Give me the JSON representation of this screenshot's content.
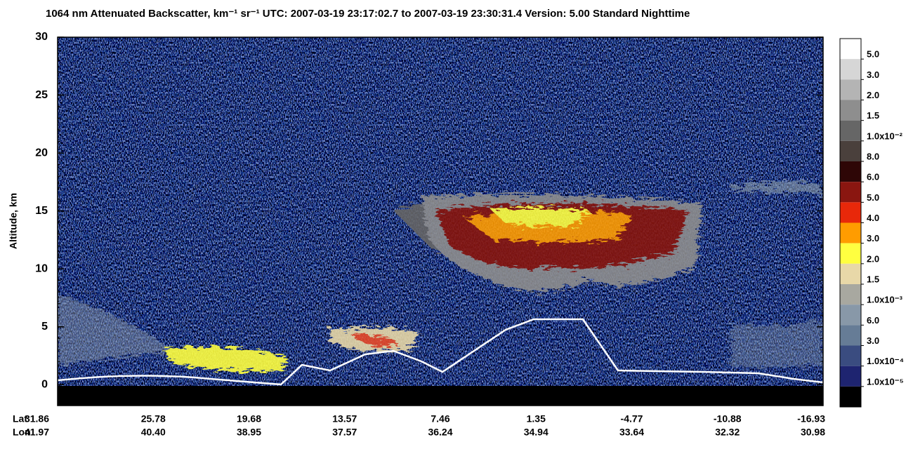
{
  "chart_data": {
    "type": "heatmap",
    "title": "1064 nm Attenuated Backscatter, km⁻¹ sr⁻¹    UTC:  2007-03-19 23:17:02.7  to  2007-03-19 23:30:31.4    Version: 5.00  Standard  Nighttime",
    "ylabel": "Altitude, km",
    "ylim": [
      -1.8,
      30
    ],
    "yticks": [
      0,
      5,
      10,
      15,
      20,
      25,
      30
    ],
    "x_rows": [
      {
        "name": "Lat",
        "labels": [
          "31.86",
          "25.78",
          "19.68",
          "13.57",
          "7.46",
          "1.35",
          "-4.77",
          "-10.88",
          "-16.93"
        ]
      },
      {
        "name": "Lon",
        "labels": [
          "41.97",
          "40.40",
          "38.95",
          "37.57",
          "36.24",
          "34.94",
          "33.64",
          "32.32",
          "30.98"
        ]
      }
    ],
    "colorbar": {
      "colors": [
        "#ffffff",
        "#d6d6d6",
        "#b4b4b4",
        "#8e8e8e",
        "#666666",
        "#4a403c",
        "#2e0606",
        "#8a1610",
        "#e8280a",
        "#ff9c00",
        "#ffff40",
        "#e8d8a8",
        "#a8a8a0",
        "#8898a8",
        "#667c96",
        "#3a4c80",
        "#1e2470",
        "#000000"
      ],
      "labels": [
        "5.0",
        "3.0",
        "2.0",
        "1.5",
        "1.0x10⁻²",
        "8.0",
        "6.0",
        "5.0",
        "4.0",
        "3.0",
        "2.0",
        "1.5",
        "1.0x10⁻³",
        "6.0",
        "3.0",
        "1.0x10⁻⁴",
        "1.0x10⁻⁵"
      ]
    }
  }
}
